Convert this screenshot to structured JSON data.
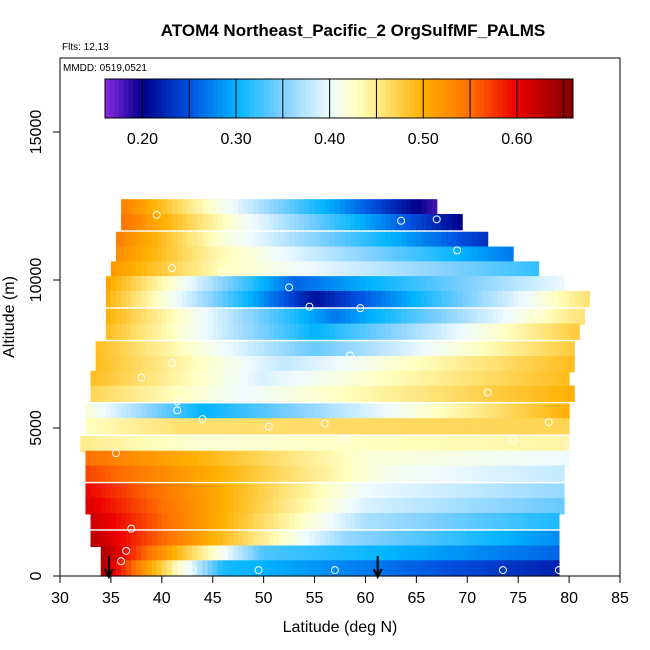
{
  "chart_data": {
    "type": "heatmap",
    "title": "ATOM4 Northeast_Pacific_2 OrgSulfMF_PALMS",
    "flights_label": "Flts: 12,13",
    "mmdd_label": "MMDD: 0519,0521",
    "xlabel": "Latitude (deg N)",
    "ylabel": "Altitude (m)",
    "xlim": [
      30,
      85
    ],
    "ylim": [
      0,
      17500
    ],
    "x_ticks": [
      30,
      35,
      40,
      45,
      50,
      55,
      60,
      65,
      70,
      75,
      80,
      85
    ],
    "y_ticks": [
      0,
      5000,
      10000,
      15000
    ],
    "colorbar": {
      "range": [
        0.16,
        0.66
      ],
      "ticks": [
        0.2,
        0.3,
        0.4,
        0.5,
        0.6
      ],
      "tick_labels": [
        "0.20",
        "0.30",
        "0.40",
        "0.50",
        "0.60"
      ],
      "stops": [
        {
          "v": 0.16,
          "c": "#8a2be2"
        },
        {
          "v": 0.2,
          "c": "#00008b"
        },
        {
          "v": 0.25,
          "c": "#0050e0"
        },
        {
          "v": 0.3,
          "c": "#00b4ff"
        },
        {
          "v": 0.35,
          "c": "#80d0ff"
        },
        {
          "v": 0.4,
          "c": "#eefaff"
        },
        {
          "v": 0.43,
          "c": "#ffffc0"
        },
        {
          "v": 0.46,
          "c": "#ffe070"
        },
        {
          "v": 0.5,
          "c": "#ffb000"
        },
        {
          "v": 0.55,
          "c": "#ff7000"
        },
        {
          "v": 0.6,
          "c": "#ee0000"
        },
        {
          "v": 0.66,
          "c": "#800000"
        }
      ]
    },
    "rows": [
      {
        "alt": 12200,
        "lat0": 36,
        "lat1": 67,
        "v0": 0.54,
        "v1": 0.18,
        "mid": 46,
        "peak": 0.41,
        "dip": null
      },
      {
        "alt": 11700,
        "lat0": 36,
        "lat1": 69.5,
        "v0": 0.55,
        "v1": 0.2,
        "mid": 47,
        "peak": 0.42,
        "dip": null
      },
      {
        "alt": 11100,
        "lat0": 35.5,
        "lat1": 72,
        "v0": 0.54,
        "v1": 0.23,
        "mid": 46,
        "peak": 0.42,
        "dip": null
      },
      {
        "alt": 10600,
        "lat0": 35.5,
        "lat1": 74.5,
        "v0": 0.53,
        "v1": 0.27,
        "mid": 45,
        "peak": 0.44,
        "dip": null
      },
      {
        "alt": 10100,
        "lat0": 35,
        "lat1": 77,
        "v0": 0.52,
        "v1": 0.32,
        "mid": 46,
        "peak": 0.43,
        "dip": null
      },
      {
        "alt": 9600,
        "lat0": 34.5,
        "lat1": 79.5,
        "v0": 0.51,
        "v1": 0.4,
        "mid": 53,
        "peak": 0.26,
        "dip": null
      },
      {
        "alt": 9100,
        "lat0": 34.5,
        "lat1": 82,
        "v0": 0.5,
        "v1": 0.46,
        "mid": 55,
        "peak": 0.21,
        "dip": null
      },
      {
        "alt": 8500,
        "lat0": 34.5,
        "lat1": 81.5,
        "v0": 0.5,
        "v1": 0.46,
        "mid": 57,
        "peak": 0.27,
        "dip": null
      },
      {
        "alt": 8000,
        "lat0": 34.5,
        "lat1": 81,
        "v0": 0.49,
        "v1": 0.48,
        "mid": 55,
        "peak": 0.3,
        "dip": null
      },
      {
        "alt": 7400,
        "lat0": 33.5,
        "lat1": 80.5,
        "v0": 0.49,
        "v1": 0.48,
        "mid": 55,
        "peak": 0.34,
        "dip": null
      },
      {
        "alt": 6900,
        "lat0": 33.5,
        "lat1": 80.5,
        "v0": 0.49,
        "v1": 0.49,
        "mid": 52,
        "peak": 0.38,
        "dip": null
      },
      {
        "alt": 6400,
        "lat0": 33,
        "lat1": 80,
        "v0": 0.49,
        "v1": 0.49,
        "mid": 50,
        "peak": 0.39,
        "dip": null
      },
      {
        "alt": 5900,
        "lat0": 33,
        "lat1": 80.5,
        "v0": 0.47,
        "v1": 0.5,
        "mid": 48,
        "peak": 0.4,
        "dip": null
      },
      {
        "alt": 5300,
        "lat0": 32.5,
        "lat1": 80,
        "v0": 0.42,
        "v1": 0.5,
        "mid": 44,
        "peak": 0.3,
        "dip": null
      },
      {
        "alt": 4800,
        "lat0": 32.5,
        "lat1": 80,
        "v0": 0.43,
        "v1": 0.47,
        "mid": 42,
        "peak": 0.46,
        "dip": null
      },
      {
        "alt": 4200,
        "lat0": 32,
        "lat1": 80,
        "v0": 0.45,
        "v1": 0.44,
        "mid": 44,
        "peak": 0.42,
        "dip": null
      },
      {
        "alt": 3700,
        "lat0": 32.5,
        "lat1": 80,
        "v0": 0.55,
        "v1": 0.4,
        "mid": 60,
        "peak": 0.42,
        "dip": null
      },
      {
        "alt": 3200,
        "lat0": 32.5,
        "lat1": 79.5,
        "v0": 0.57,
        "v1": 0.38,
        "mid": 62,
        "peak": 0.41,
        "dip": null
      },
      {
        "alt": 2600,
        "lat0": 32.5,
        "lat1": 79.5,
        "v0": 0.6,
        "v1": 0.36,
        "mid": 60,
        "peak": 0.4,
        "dip": null
      },
      {
        "alt": 2100,
        "lat0": 32.5,
        "lat1": 79.5,
        "v0": 0.61,
        "v1": 0.34,
        "mid": 60,
        "peak": 0.39,
        "dip": null
      },
      {
        "alt": 1600,
        "lat0": 33,
        "lat1": 79,
        "v0": 0.62,
        "v1": 0.31,
        "mid": 60,
        "peak": 0.37,
        "dip": null
      },
      {
        "alt": 1000,
        "lat0": 33,
        "lat1": 79,
        "v0": 0.63,
        "v1": 0.28,
        "mid": 58,
        "peak": 0.36,
        "dip": null
      },
      {
        "alt": 500,
        "lat0": 34,
        "lat1": 79,
        "v0": 0.64,
        "v1": 0.26,
        "mid": 50,
        "peak": 0.33,
        "dip": null
      },
      {
        "alt": 0,
        "lat0": 34,
        "lat1": 79,
        "v0": 0.64,
        "v1": 0.22,
        "mid": 46,
        "peak": 0.31,
        "dip": null
      }
    ],
    "points": [
      {
        "lat": 39.5,
        "alt": 12200
      },
      {
        "lat": 63.5,
        "alt": 12000
      },
      {
        "lat": 67,
        "alt": 12050
      },
      {
        "lat": 69,
        "alt": 11000
      },
      {
        "lat": 41,
        "alt": 10400
      },
      {
        "lat": 46,
        "alt": 10250
      },
      {
        "lat": 52.5,
        "alt": 9750
      },
      {
        "lat": 54.5,
        "alt": 9100
      },
      {
        "lat": 59.5,
        "alt": 9050
      },
      {
        "lat": 77,
        "alt": 8900
      },
      {
        "lat": 41,
        "alt": 7200
      },
      {
        "lat": 58.5,
        "alt": 7450
      },
      {
        "lat": 38,
        "alt": 6700
      },
      {
        "lat": 72,
        "alt": 6200
      },
      {
        "lat": 41.5,
        "alt": 5900
      },
      {
        "lat": 41.5,
        "alt": 5600
      },
      {
        "lat": 44,
        "alt": 5300
      },
      {
        "lat": 50.5,
        "alt": 5050
      },
      {
        "lat": 56,
        "alt": 5150
      },
      {
        "lat": 58,
        "alt": 4600
      },
      {
        "lat": 78,
        "alt": 5200
      },
      {
        "lat": 74.5,
        "alt": 4600
      },
      {
        "lat": 35.5,
        "alt": 4150
      },
      {
        "lat": 37,
        "alt": 1600
      },
      {
        "lat": 36.5,
        "alt": 850
      },
      {
        "lat": 36,
        "alt": 500
      },
      {
        "lat": 41.5,
        "alt": 250
      },
      {
        "lat": 43,
        "alt": 200
      },
      {
        "lat": 49.5,
        "alt": 200
      },
      {
        "lat": 57,
        "alt": 200
      },
      {
        "lat": 73.5,
        "alt": 200
      },
      {
        "lat": 79,
        "alt": 200
      },
      {
        "lat": 80,
        "alt": 4400
      }
    ],
    "arrows": [
      {
        "lat": 34.8
      },
      {
        "lat": 61.2
      }
    ]
  }
}
